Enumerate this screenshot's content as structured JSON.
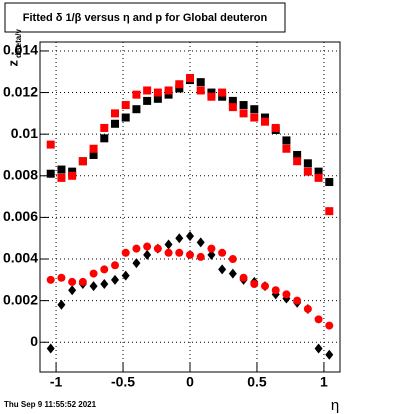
{
  "chart_data": {
    "type": "scatter",
    "title": "Fitted δ 1/β versus η and p for Global deuteron",
    "xlabel": "η",
    "ylabel": "z",
    "ylabel_sub": "dBeta/v",
    "footer": "Thu Sep  9 11:55:52 2021",
    "grid": true,
    "xlim": [
      -1.12,
      1.12
    ],
    "xticks": [
      -1,
      -0.5,
      0,
      0.5,
      1
    ],
    "ylim": [
      -0.00143,
      0.01443
    ],
    "yticks": [
      0,
      0.002,
      0.004,
      0.006,
      0.008,
      0.01,
      0.012,
      0.014
    ],
    "x": [
      -1.04,
      -0.96,
      -0.88,
      -0.8,
      -0.72,
      -0.64,
      -0.56,
      -0.48,
      -0.4,
      -0.32,
      -0.24,
      -0.16,
      -0.08,
      0,
      0.08,
      0.16,
      0.24,
      0.32,
      0.4,
      0.48,
      0.56,
      0.64,
      0.72,
      0.8,
      0.88,
      0.96,
      1.04
    ],
    "series": [
      {
        "color": "#000000",
        "marker": "square",
        "values": [
          0.0081,
          0.0083,
          0.0082,
          0.0087,
          0.009,
          0.0098,
          0.0105,
          0.0108,
          0.0112,
          0.0116,
          0.0117,
          0.0119,
          0.0122,
          0.0126,
          0.0125,
          0.012,
          0.0118,
          0.0116,
          0.0114,
          0.0112,
          0.0108,
          0.0102,
          0.0097,
          0.009,
          0.0086,
          0.0082,
          0.0077
        ]
      },
      {
        "color": "#ff0000",
        "marker": "square",
        "values": [
          0.0095,
          0.0079,
          0.008,
          0.0087,
          0.0093,
          0.0103,
          0.011,
          0.0114,
          0.0119,
          0.0121,
          0.012,
          0.0121,
          0.0124,
          0.0127,
          0.0121,
          0.0118,
          0.012,
          0.0113,
          0.011,
          0.0108,
          0.0106,
          0.0103,
          0.0093,
          0.0087,
          0.0082,
          0.0079,
          0.0063
        ]
      },
      {
        "color": "#000000",
        "marker": "diamond",
        "values": [
          -0.0003,
          0.0018,
          0.0025,
          0.0028,
          0.0027,
          0.0028,
          0.003,
          0.0032,
          0.0038,
          0.0042,
          0.0045,
          0.0047,
          0.005,
          0.0051,
          0.0048,
          0.0042,
          0.0035,
          0.0033,
          0.003,
          0.0029,
          0.0027,
          0.0023,
          0.0021,
          0.0019,
          0.0016,
          -0.0003,
          -0.0006
        ]
      },
      {
        "color": "#ff0000",
        "marker": "circle",
        "values": [
          0.003,
          0.0031,
          0.0029,
          0.0029,
          0.0033,
          0.0035,
          0.0037,
          0.0043,
          0.0045,
          0.0046,
          0.0045,
          0.0043,
          0.0043,
          0.0042,
          0.0041,
          0.0045,
          0.0043,
          0.004,
          0.0031,
          0.0028,
          0.0027,
          0.0025,
          0.0023,
          0.002,
          0.0016,
          0.0011,
          0.0008
        ]
      }
    ]
  }
}
